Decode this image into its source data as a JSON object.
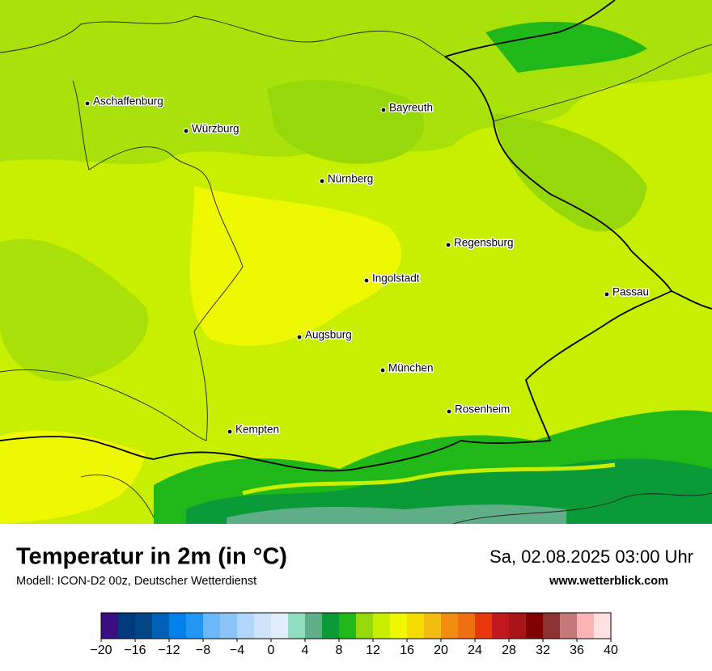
{
  "map": {
    "cities": [
      "Aschaffenburg",
      "Würzburg",
      "Bayreuth",
      "Nürnberg",
      "Regensburg",
      "Ingolstadt",
      "Passau",
      "Augsburg",
      "München",
      "Rosenheim",
      "Kempten"
    ]
  },
  "title": "Temperatur in 2m (in °C)",
  "model": "Modell: ICON-D2 00z, Deutscher Wetterdienst",
  "datetime": "Sa, 02.08.2025 03:00 Uhr",
  "site": "www.wetterblick.com",
  "colorbar": {
    "bounds": [
      -20,
      -18,
      -16,
      -14,
      -12,
      -10,
      -8,
      -6,
      -4,
      -2,
      0,
      2,
      4,
      6,
      8,
      10,
      12,
      14,
      16,
      18,
      20,
      22,
      24,
      26,
      28,
      30,
      32,
      34,
      36,
      38,
      40
    ],
    "colors": [
      "#3a0d82",
      "#003a7c",
      "#004684",
      "#0060b8",
      "#0080e8",
      "#2196f3",
      "#6ab8f7",
      "#8cc4f8",
      "#b0d6fa",
      "#cde4fb",
      "#e0eefc",
      "#90dcc0",
      "#60ae88",
      "#0a9a38",
      "#20b818",
      "#96d80a",
      "#c8ee00",
      "#eef800",
      "#f4dc00",
      "#f2bc10",
      "#f28c10",
      "#ef6e10",
      "#e8380c",
      "#c0181c",
      "#a81418",
      "#800000",
      "#8c3232",
      "#c47878",
      "#fcb4b4",
      "#ffe0e0"
    ],
    "ticks": [
      {
        "value": -20,
        "label": "−20"
      },
      {
        "value": -16,
        "label": "−16"
      },
      {
        "value": -12,
        "label": "−12"
      },
      {
        "value": -8,
        "label": "−8"
      },
      {
        "value": -4,
        "label": "−4"
      },
      0,
      4,
      8,
      12,
      16,
      20,
      24,
      28,
      32,
      36,
      40
    ]
  }
}
